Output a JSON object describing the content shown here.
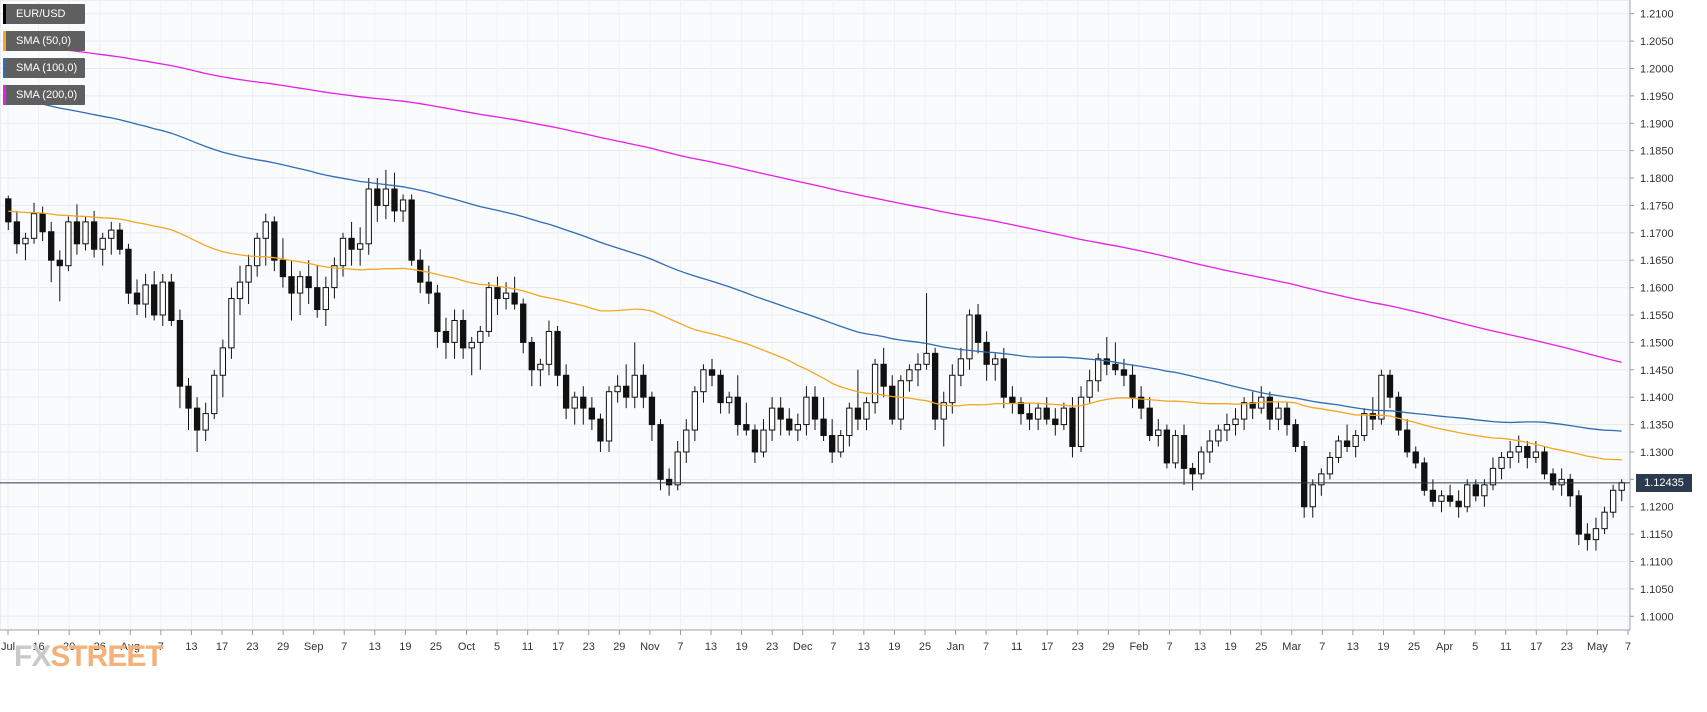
{
  "chart_data": {
    "type": "candlestick",
    "instrument": "EUR/USD",
    "ylim": [
      1.0975,
      1.2125
    ],
    "y_ticks": [
      "1.2100",
      "1.2050",
      "1.2000",
      "1.1950",
      "1.1900",
      "1.1850",
      "1.1800",
      "1.1750",
      "1.1700",
      "1.1650",
      "1.1600",
      "1.1550",
      "1.1500",
      "1.1450",
      "1.1400",
      "1.1350",
      "1.1300",
      "1.1250",
      "1.1200",
      "1.1150",
      "1.1100",
      "1.1050",
      "1.1000"
    ],
    "x_ticks": [
      "Jul",
      "16",
      "20",
      "26",
      "Aug",
      "7",
      "13",
      "17",
      "23",
      "29",
      "Sep",
      "7",
      "13",
      "19",
      "25",
      "Oct",
      "5",
      "11",
      "17",
      "23",
      "29",
      "Nov",
      "7",
      "13",
      "19",
      "23",
      "Dec",
      "7",
      "13",
      "19",
      "25",
      "Jan",
      "7",
      "11",
      "17",
      "23",
      "29",
      "Feb",
      "7",
      "13",
      "19",
      "25",
      "Mar",
      "7",
      "13",
      "19",
      "25",
      "Apr",
      "5",
      "11",
      "17",
      "23",
      "May",
      "7"
    ],
    "current_price": 1.12435,
    "current_price_label": "1.12435",
    "legend": [
      {
        "label": "EUR/USD",
        "color": "#000000"
      },
      {
        "label": "SMA (50,0)",
        "color": "#f5a623"
      },
      {
        "label": "SMA (100,0)",
        "color": "#2f6cb5"
      },
      {
        "label": "SMA (200,0)",
        "color": "#e61ee6"
      }
    ],
    "candles_ohlc": [
      [
        1.1762,
        1.1768,
        1.1705,
        1.172
      ],
      [
        1.172,
        1.174,
        1.1662,
        1.168
      ],
      [
        1.168,
        1.17,
        1.165,
        1.169
      ],
      [
        1.169,
        1.1755,
        1.168,
        1.1735
      ],
      [
        1.1735,
        1.1748,
        1.1685,
        1.1702
      ],
      [
        1.1702,
        1.172,
        1.161,
        1.165
      ],
      [
        1.165,
        1.1668,
        1.1575,
        1.164
      ],
      [
        1.164,
        1.173,
        1.163,
        1.172
      ],
      [
        1.172,
        1.1752,
        1.166,
        1.168
      ],
      [
        1.168,
        1.173,
        1.1668,
        1.172
      ],
      [
        1.172,
        1.174,
        1.1655,
        1.167
      ],
      [
        1.167,
        1.17,
        1.164,
        1.169
      ],
      [
        1.169,
        1.172,
        1.166,
        1.1705
      ],
      [
        1.1705,
        1.1718,
        1.166,
        1.167
      ],
      [
        1.167,
        1.168,
        1.157,
        1.159
      ],
      [
        1.159,
        1.1615,
        1.155,
        1.157
      ],
      [
        1.157,
        1.1625,
        1.1545,
        1.1605
      ],
      [
        1.1605,
        1.163,
        1.154,
        1.155
      ],
      [
        1.155,
        1.1625,
        1.153,
        1.161
      ],
      [
        1.161,
        1.1625,
        1.153,
        1.154
      ],
      [
        1.154,
        1.156,
        1.138,
        1.142
      ],
      [
        1.142,
        1.1435,
        1.134,
        1.138
      ],
      [
        1.138,
        1.14,
        1.13,
        1.134
      ],
      [
        1.134,
        1.139,
        1.132,
        1.137
      ],
      [
        1.137,
        1.145,
        1.136,
        1.144
      ],
      [
        1.144,
        1.1505,
        1.14,
        1.149
      ],
      [
        1.149,
        1.16,
        1.147,
        1.158
      ],
      [
        1.158,
        1.164,
        1.155,
        1.161
      ],
      [
        1.161,
        1.166,
        1.157,
        1.164
      ],
      [
        1.164,
        1.17,
        1.162,
        1.169
      ],
      [
        1.169,
        1.1735,
        1.164,
        1.172
      ],
      [
        1.172,
        1.173,
        1.163,
        1.165
      ],
      [
        1.165,
        1.169,
        1.16,
        1.162
      ],
      [
        1.162,
        1.165,
        1.154,
        1.159
      ],
      [
        1.159,
        1.163,
        1.155,
        1.162
      ],
      [
        1.162,
        1.165,
        1.157,
        1.16
      ],
      [
        1.16,
        1.164,
        1.1545,
        1.156
      ],
      [
        1.156,
        1.162,
        1.153,
        1.16
      ],
      [
        1.16,
        1.1655,
        1.158,
        1.164
      ],
      [
        1.164,
        1.17,
        1.162,
        1.169
      ],
      [
        1.169,
        1.172,
        1.164,
        1.167
      ],
      [
        1.167,
        1.171,
        1.164,
        1.168
      ],
      [
        1.168,
        1.18,
        1.166,
        1.178
      ],
      [
        1.178,
        1.18,
        1.172,
        1.175
      ],
      [
        1.175,
        1.1815,
        1.1725,
        1.178
      ],
      [
        1.178,
        1.181,
        1.172,
        1.174
      ],
      [
        1.174,
        1.177,
        1.172,
        1.176
      ],
      [
        1.176,
        1.177,
        1.164,
        1.165
      ],
      [
        1.165,
        1.167,
        1.159,
        1.161
      ],
      [
        1.161,
        1.164,
        1.157,
        1.159
      ],
      [
        1.159,
        1.1605,
        1.149,
        1.152
      ],
      [
        1.152,
        1.1545,
        1.147,
        1.15
      ],
      [
        1.15,
        1.156,
        1.147,
        1.154
      ],
      [
        1.154,
        1.156,
        1.147,
        1.149
      ],
      [
        1.149,
        1.151,
        1.144,
        1.15
      ],
      [
        1.15,
        1.153,
        1.145,
        1.152
      ],
      [
        1.152,
        1.161,
        1.151,
        1.16
      ],
      [
        1.16,
        1.162,
        1.155,
        1.158
      ],
      [
        1.158,
        1.161,
        1.156,
        1.159
      ],
      [
        1.159,
        1.162,
        1.156,
        1.157
      ],
      [
        1.157,
        1.158,
        1.148,
        1.15
      ],
      [
        1.15,
        1.151,
        1.142,
        1.145
      ],
      [
        1.145,
        1.147,
        1.142,
        1.146
      ],
      [
        1.146,
        1.154,
        1.144,
        1.152
      ],
      [
        1.152,
        1.153,
        1.142,
        1.144
      ],
      [
        1.144,
        1.146,
        1.136,
        1.138
      ],
      [
        1.138,
        1.141,
        1.135,
        1.14
      ],
      [
        1.14,
        1.142,
        1.135,
        1.138
      ],
      [
        1.138,
        1.14,
        1.134,
        1.136
      ],
      [
        1.136,
        1.137,
        1.13,
        1.132
      ],
      [
        1.132,
        1.142,
        1.13,
        1.141
      ],
      [
        1.141,
        1.144,
        1.139,
        1.142
      ],
      [
        1.142,
        1.146,
        1.138,
        1.14
      ],
      [
        1.14,
        1.15,
        1.138,
        1.144
      ],
      [
        1.144,
        1.146,
        1.138,
        1.14
      ],
      [
        1.14,
        1.141,
        1.132,
        1.135
      ],
      [
        1.135,
        1.136,
        1.123,
        1.125
      ],
      [
        1.125,
        1.127,
        1.122,
        1.124
      ],
      [
        1.124,
        1.132,
        1.123,
        1.13
      ],
      [
        1.13,
        1.136,
        1.128,
        1.134
      ],
      [
        1.134,
        1.142,
        1.132,
        1.141
      ],
      [
        1.141,
        1.146,
        1.139,
        1.145
      ],
      [
        1.145,
        1.147,
        1.142,
        1.144
      ],
      [
        1.144,
        1.145,
        1.137,
        1.139
      ],
      [
        1.139,
        1.141,
        1.137,
        1.14
      ],
      [
        1.14,
        1.144,
        1.133,
        1.135
      ],
      [
        1.135,
        1.139,
        1.133,
        1.134
      ],
      [
        1.134,
        1.135,
        1.128,
        1.13
      ],
      [
        1.13,
        1.136,
        1.129,
        1.134
      ],
      [
        1.134,
        1.14,
        1.132,
        1.138
      ],
      [
        1.138,
        1.14,
        1.133,
        1.136
      ],
      [
        1.136,
        1.138,
        1.133,
        1.134
      ],
      [
        1.134,
        1.137,
        1.132,
        1.135
      ],
      [
        1.135,
        1.142,
        1.133,
        1.14
      ],
      [
        1.14,
        1.142,
        1.134,
        1.136
      ],
      [
        1.136,
        1.14,
        1.132,
        1.133
      ],
      [
        1.133,
        1.136,
        1.128,
        1.13
      ],
      [
        1.13,
        1.134,
        1.129,
        1.133
      ],
      [
        1.133,
        1.139,
        1.131,
        1.138
      ],
      [
        1.138,
        1.145,
        1.134,
        1.136
      ],
      [
        1.136,
        1.14,
        1.134,
        1.139
      ],
      [
        1.139,
        1.147,
        1.137,
        1.146
      ],
      [
        1.146,
        1.149,
        1.14,
        1.142
      ],
      [
        1.142,
        1.144,
        1.135,
        1.136
      ],
      [
        1.136,
        1.144,
        1.134,
        1.143
      ],
      [
        1.143,
        1.146,
        1.141,
        1.145
      ],
      [
        1.145,
        1.148,
        1.142,
        1.146
      ],
      [
        1.146,
        1.159,
        1.145,
        1.148
      ],
      [
        1.148,
        1.149,
        1.134,
        1.136
      ],
      [
        1.136,
        1.141,
        1.131,
        1.139
      ],
      [
        1.139,
        1.146,
        1.137,
        1.144
      ],
      [
        1.144,
        1.149,
        1.142,
        1.147
      ],
      [
        1.147,
        1.156,
        1.145,
        1.155
      ],
      [
        1.155,
        1.157,
        1.148,
        1.15
      ],
      [
        1.15,
        1.152,
        1.143,
        1.146
      ],
      [
        1.146,
        1.148,
        1.143,
        1.147
      ],
      [
        1.147,
        1.149,
        1.138,
        1.14
      ],
      [
        1.14,
        1.142,
        1.137,
        1.139
      ],
      [
        1.139,
        1.14,
        1.135,
        1.137
      ],
      [
        1.137,
        1.139,
        1.134,
        1.136
      ],
      [
        1.136,
        1.139,
        1.134,
        1.138
      ],
      [
        1.138,
        1.14,
        1.135,
        1.136
      ],
      [
        1.136,
        1.138,
        1.133,
        1.135
      ],
      [
        1.135,
        1.139,
        1.134,
        1.138
      ],
      [
        1.138,
        1.14,
        1.129,
        1.131
      ],
      [
        1.131,
        1.142,
        1.13,
        1.14
      ],
      [
        1.14,
        1.145,
        1.139,
        1.143
      ],
      [
        1.143,
        1.148,
        1.141,
        1.147
      ],
      [
        1.147,
        1.151,
        1.144,
        1.146
      ],
      [
        1.146,
        1.15,
        1.144,
        1.145
      ],
      [
        1.145,
        1.147,
        1.142,
        1.144
      ],
      [
        1.144,
        1.146,
        1.138,
        1.14
      ],
      [
        1.14,
        1.142,
        1.136,
        1.138
      ],
      [
        1.138,
        1.14,
        1.132,
        1.133
      ],
      [
        1.133,
        1.136,
        1.131,
        1.134
      ],
      [
        1.134,
        1.135,
        1.127,
        1.128
      ],
      [
        1.128,
        1.134,
        1.127,
        1.133
      ],
      [
        1.133,
        1.135,
        1.124,
        1.127
      ],
      [
        1.127,
        1.128,
        1.123,
        1.126
      ],
      [
        1.126,
        1.131,
        1.125,
        1.13
      ],
      [
        1.13,
        1.134,
        1.128,
        1.132
      ],
      [
        1.132,
        1.135,
        1.131,
        1.134
      ],
      [
        1.134,
        1.137,
        1.132,
        1.135
      ],
      [
        1.135,
        1.138,
        1.133,
        1.136
      ],
      [
        1.136,
        1.14,
        1.134,
        1.139
      ],
      [
        1.139,
        1.141,
        1.136,
        1.138
      ],
      [
        1.138,
        1.142,
        1.137,
        1.14
      ],
      [
        1.14,
        1.141,
        1.134,
        1.136
      ],
      [
        1.136,
        1.139,
        1.134,
        1.138
      ],
      [
        1.138,
        1.139,
        1.133,
        1.135
      ],
      [
        1.135,
        1.136,
        1.13,
        1.131
      ],
      [
        1.131,
        1.132,
        1.118,
        1.12
      ],
      [
        1.12,
        1.125,
        1.118,
        1.124
      ],
      [
        1.124,
        1.127,
        1.122,
        1.126
      ],
      [
        1.126,
        1.13,
        1.125,
        1.129
      ],
      [
        1.129,
        1.133,
        1.128,
        1.132
      ],
      [
        1.132,
        1.135,
        1.13,
        1.131
      ],
      [
        1.131,
        1.134,
        1.129,
        1.133
      ],
      [
        1.133,
        1.138,
        1.132,
        1.137
      ],
      [
        1.137,
        1.14,
        1.134,
        1.136
      ],
      [
        1.136,
        1.145,
        1.135,
        1.144
      ],
      [
        1.144,
        1.145,
        1.138,
        1.14
      ],
      [
        1.14,
        1.141,
        1.133,
        1.134
      ],
      [
        1.134,
        1.136,
        1.129,
        1.13
      ],
      [
        1.13,
        1.131,
        1.127,
        1.128
      ],
      [
        1.128,
        1.129,
        1.122,
        1.123
      ],
      [
        1.123,
        1.125,
        1.12,
        1.121
      ],
      [
        1.121,
        1.123,
        1.119,
        1.122
      ],
      [
        1.122,
        1.124,
        1.12,
        1.121
      ],
      [
        1.121,
        1.123,
        1.118,
        1.12
      ],
      [
        1.12,
        1.125,
        1.119,
        1.124
      ],
      [
        1.124,
        1.125,
        1.121,
        1.122
      ],
      [
        1.122,
        1.125,
        1.12,
        1.124
      ],
      [
        1.124,
        1.129,
        1.123,
        1.127
      ],
      [
        1.127,
        1.13,
        1.125,
        1.129
      ],
      [
        1.129,
        1.132,
        1.127,
        1.13
      ],
      [
        1.13,
        1.133,
        1.128,
        1.131
      ],
      [
        1.131,
        1.132,
        1.127,
        1.129
      ],
      [
        1.129,
        1.132,
        1.128,
        1.13
      ],
      [
        1.13,
        1.131,
        1.125,
        1.126
      ],
      [
        1.126,
        1.127,
        1.123,
        1.124
      ],
      [
        1.124,
        1.127,
        1.122,
        1.125
      ],
      [
        1.125,
        1.126,
        1.12,
        1.122
      ],
      [
        1.122,
        1.123,
        1.113,
        1.115
      ],
      [
        1.115,
        1.117,
        1.112,
        1.114
      ],
      [
        1.114,
        1.118,
        1.112,
        1.116
      ],
      [
        1.116,
        1.12,
        1.115,
        1.119
      ],
      [
        1.119,
        1.124,
        1.118,
        1.123
      ],
      [
        1.123,
        1.125,
        1.121,
        1.1244
      ]
    ]
  }
}
